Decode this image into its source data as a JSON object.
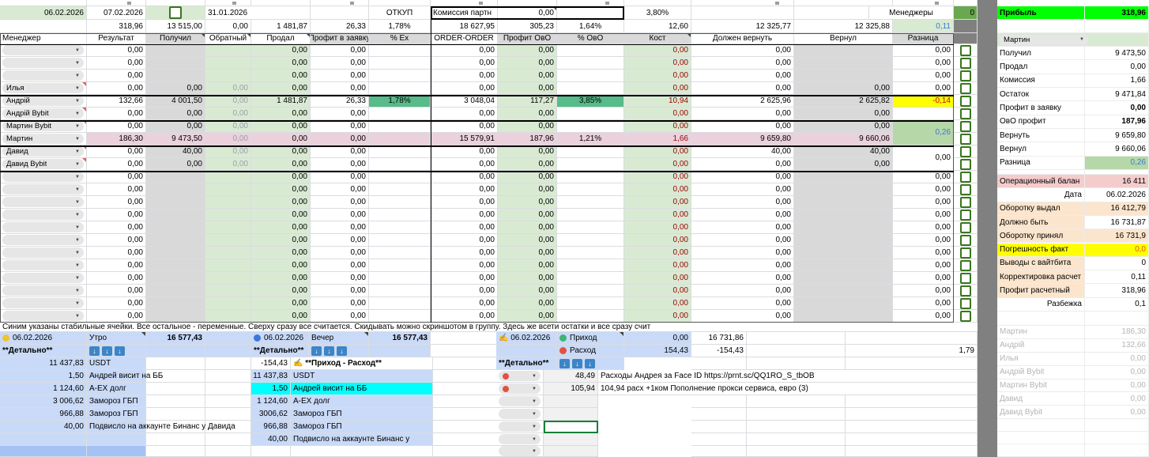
{
  "colors": {
    "profit_green": "#00ff00",
    "highlight_green": "#57bb8a",
    "light_green": "#d9ead3",
    "row_pink": "#ead1dc",
    "warning_yellow": "#ffff00",
    "section_blue": "#c9daf8",
    "cyan_highlight": "#00ffff",
    "managers_green": "#6aa84f"
  },
  "top": {
    "date_main": "06.02.2026",
    "date_next": "07.02.2026",
    "date_prev": "31.01.2026",
    "otkup": "ОТКУП",
    "commission_label": "Комиссия партн",
    "commission_value": "0,00",
    "partner_pct": "3,80%",
    "managers_label": "Менеджеры",
    "managers_count": "0",
    "profit_label": "Прибыль",
    "profit_value": "318,96",
    "totals": [
      "318,96",
      "13 515,00",
      "0,00",
      "1 481,87",
      "26,33",
      "1,78%",
      "18 627,95",
      "305,23",
      "1,64%",
      "12,60",
      "12 325,77",
      "12 325,88",
      "0,11"
    ]
  },
  "table": {
    "headers": [
      "Менеджер",
      "Результат",
      "Получил",
      "Обратный",
      "Продал",
      "Профит в заявку",
      "% Ex",
      "ORDER-ORDER",
      "Профит ОвО",
      "% ОвО",
      "Кост",
      "Должен вернуть",
      "Вернул",
      "Разница"
    ],
    "rows": [
      {
        "name": "",
        "cells": [
          "0,00",
          "",
          "",
          "0,00",
          "0,00",
          "",
          "0,00",
          "0,00",
          "",
          "0,00",
          "0,00",
          ""
        ],
        "rz": {
          "v": "0,00"
        }
      },
      {
        "name": "",
        "cells": [
          "0,00",
          "",
          "",
          "0,00",
          "0,00",
          "",
          "0,00",
          "0,00",
          "",
          "0,00",
          "0,00",
          ""
        ],
        "rz": {
          "v": "0,00"
        }
      },
      {
        "name": "",
        "cells": [
          "0,00",
          "",
          "",
          "0,00",
          "0,00",
          "",
          "0,00",
          "0,00",
          "",
          "0,00",
          "0,00",
          ""
        ],
        "rz": {
          "v": "0,00"
        }
      },
      {
        "name": "Илья",
        "comment": true,
        "cells": [
          "0,00",
          "0,00",
          "0,00",
          "0,00",
          "0,00",
          "",
          "0,00",
          "0,00",
          "",
          "0,00",
          "0,00",
          "0,00"
        ],
        "rz": {
          "v": "0,00"
        }
      },
      {
        "name": "Андрій",
        "cells": [
          "132,66",
          "4 001,50",
          "0,00",
          "1 481,87",
          "26,33",
          "1,78%",
          "3 048,04",
          "117,27",
          "3,85%",
          "10,94",
          "2 625,96",
          "2 625,82"
        ],
        "rz": {
          "v": "-0,14",
          "style": "yellow"
        }
      },
      {
        "name": "Андрій Bybit",
        "comment": true,
        "cells": [
          "0,00",
          "0,00",
          "0,00",
          "0,00",
          "0,00",
          "",
          "0,00",
          "0,00",
          "",
          "0,00",
          "0,00",
          "0,00"
        ],
        "rz": {
          "v": ""
        }
      },
      {
        "name": "Мартин Bybit",
        "comment": true,
        "cells": [
          "0,00",
          "0,00",
          "0,00",
          "0,00",
          "0,00",
          "",
          "0,00",
          "0,00",
          "",
          "0,00",
          "0,00",
          "0,00"
        ],
        "rz": {
          "v": "0,26",
          "span": 2,
          "style": "green"
        }
      },
      {
        "name": "Мартин",
        "pink": true,
        "cells": [
          "186,30",
          "9 473,50",
          "0,00",
          "0,00",
          "0,00",
          "",
          "15 579,91",
          "187,96",
          "1,21%",
          "1,66",
          "9 659,80",
          "9 660,06"
        ],
        "rz": {
          "skip": true
        }
      },
      {
        "name": "Давид",
        "comment": true,
        "cells": [
          "0,00",
          "40,00",
          "0,00",
          "0,00",
          "0,00",
          "",
          "0,00",
          "0,00",
          "",
          "0,00",
          "40,00",
          "40,00"
        ],
        "rz": {
          "v": "0,00",
          "span": 2
        }
      },
      {
        "name": "Давид Bybit",
        "comment": true,
        "cells": [
          "0,00",
          "0,00",
          "0,00",
          "0,00",
          "0,00",
          "",
          "0,00",
          "0,00",
          "",
          "0,00",
          "0,00",
          "0,00"
        ],
        "rz": {
          "skip": true
        }
      },
      {
        "name": "",
        "cells": [
          "0,00",
          "",
          "",
          "0,00",
          "0,00",
          "",
          "0,00",
          "0,00",
          "",
          "0,00",
          "0,00",
          ""
        ],
        "rz": {
          "v": "0,00"
        }
      },
      {
        "name": "",
        "cells": [
          "0,00",
          "",
          "",
          "0,00",
          "0,00",
          "",
          "0,00",
          "0,00",
          "",
          "0,00",
          "0,00",
          ""
        ],
        "rz": {
          "v": "0,00"
        }
      },
      {
        "name": "",
        "cells": [
          "0,00",
          "",
          "",
          "0,00",
          "0,00",
          "",
          "0,00",
          "0,00",
          "",
          "0,00",
          "0,00",
          ""
        ],
        "rz": {
          "v": "0,00"
        }
      },
      {
        "name": "",
        "cells": [
          "0,00",
          "",
          "",
          "0,00",
          "0,00",
          "",
          "0,00",
          "0,00",
          "",
          "0,00",
          "0,00",
          ""
        ],
        "rz": {
          "v": "0,00"
        }
      },
      {
        "name": "",
        "cells": [
          "0,00",
          "",
          "",
          "0,00",
          "0,00",
          "",
          "0,00",
          "0,00",
          "",
          "0,00",
          "0,00",
          ""
        ],
        "rz": {
          "v": "0,00"
        }
      },
      {
        "name": "",
        "cells": [
          "0,00",
          "",
          "",
          "0,00",
          "0,00",
          "",
          "0,00",
          "0,00",
          "",
          "0,00",
          "0,00",
          ""
        ],
        "rz": {
          "v": "0,00"
        }
      },
      {
        "name": "",
        "cells": [
          "0,00",
          "",
          "",
          "0,00",
          "0,00",
          "",
          "0,00",
          "0,00",
          "",
          "0,00",
          "0,00",
          ""
        ],
        "rz": {
          "v": "0,00"
        }
      },
      {
        "name": "",
        "cells": [
          "0,00",
          "",
          "",
          "0,00",
          "0,00",
          "",
          "0,00",
          "0,00",
          "",
          "0,00",
          "0,00",
          ""
        ],
        "rz": {
          "v": "0,00"
        }
      },
      {
        "name": "",
        "cells": [
          "0,00",
          "",
          "",
          "0,00",
          "0,00",
          "",
          "0,00",
          "0,00",
          "",
          "0,00",
          "0,00",
          ""
        ],
        "rz": {
          "v": "0,00"
        }
      },
      {
        "name": "",
        "cells": [
          "0,00",
          "",
          "",
          "0,00",
          "0,00",
          "",
          "0,00",
          "0,00",
          "",
          "0,00",
          "0,00",
          ""
        ],
        "rz": {
          "v": "0,00"
        }
      },
      {
        "name": "",
        "cells": [
          "0,00",
          "",
          "",
          "0,00",
          "0,00",
          "",
          "0,00",
          "0,00",
          "",
          "0,00",
          "0,00",
          ""
        ],
        "rz": {
          "v": "0,00"
        }
      },
      {
        "name": "",
        "cells": [
          "0,00",
          "",
          "",
          "0,00",
          "0,00",
          "",
          "0,00",
          "0,00",
          "",
          "0,00",
          "0,00",
          ""
        ],
        "rz": {
          "v": "0,00"
        }
      }
    ]
  },
  "note": "Синим указаны стабильные ячейки. Все остальное - переменные. Сверху сразу все считается. Скидывать можно скриншотом в группу. Здесь же всети остатки и все сразу счит",
  "bottom": {
    "left": {
      "date": "06.02.2026",
      "title": "Утро",
      "amount": "16 577,43",
      "detail_label": "**Детально**",
      "rows": [
        [
          "11 437,83",
          "USDT"
        ],
        [
          "1,50",
          "Андрей висит на ББ"
        ],
        [
          "1 124,60",
          "А-ЕХ долг"
        ],
        [
          "3 006,62",
          "Замороз ГБП"
        ],
        [
          "966,88",
          "Замороз ГБП"
        ],
        [
          "40,00",
          "Подвисло на аккаунте Бинанс у Давида"
        ]
      ]
    },
    "mid": {
      "date": "06.02.2026",
      "title": "Вечер",
      "amount": "16 577,43",
      "detail_label": "**Детально**",
      "flow_value": "-154,43",
      "flow_label": "**Приход - Расход**",
      "rows": [
        [
          "11 437,83",
          "USDT"
        ],
        [
          "1,50",
          "Андрей висит на ББ"
        ],
        [
          "1 124,60",
          "А-ЕХ долг"
        ],
        [
          "3006,62",
          "Замороз ГБП"
        ],
        [
          "966,88",
          "Замороз ГБП"
        ],
        [
          "40,00",
          "Подвисло на аккаунте Бинанс у"
        ]
      ]
    },
    "right": {
      "date": "06.02.2026",
      "prihod_label": "Приход",
      "prihod_value": "0,00",
      "prihod_total": "16 731,86",
      "rashod_label": "Расход",
      "rashod_value": "154,43",
      "rashod_total": "-154,43",
      "detail_label": "**Детально**",
      "extra": "1,79",
      "rows": [
        [
          "48,49",
          "Расходы Андрея за Face ID https://prnt.sc/QQ1RO_S_tbOB"
        ],
        [
          "105,94",
          "104,94 расх +1ком Пополнение прокси сервиса, евро (3)"
        ]
      ]
    }
  },
  "panel": {
    "selector": "Мартин",
    "stats": [
      [
        "Получил",
        "9 473,50"
      ],
      [
        "Продал",
        "0,00"
      ],
      [
        "Комиссия",
        "1,66"
      ],
      [
        "Остаток",
        "9 471,84"
      ],
      [
        "Профит в заявку",
        "0,00"
      ],
      [
        "ОвО профит",
        "187,96"
      ],
      [
        "Вернуть",
        "9 659,80"
      ],
      [
        "Вернул",
        "9 660,06"
      ],
      [
        "Разница",
        "0,26"
      ]
    ],
    "ops": [
      [
        "Операционный балан",
        "16 411"
      ],
      [
        "Дата",
        "06.02.2026"
      ],
      [
        "Оборотку выдал",
        "16 412,79"
      ],
      [
        "Должно быть",
        "16 731,87"
      ],
      [
        "Оборотку принял",
        "16 731,9"
      ],
      [
        "Погрешность факт",
        "0,0"
      ],
      [
        "Выводы с вайтбита",
        "0"
      ],
      [
        "Корректировка расчет",
        "0,11"
      ],
      [
        "Профит расчетный",
        "318,96"
      ],
      [
        "Разбежка",
        "0,1"
      ]
    ],
    "managers": [
      [
        "Мартин",
        "186,30"
      ],
      [
        "Андрій",
        "132,66"
      ],
      [
        "Илья",
        "0,00"
      ],
      [
        "Андрій Bybit",
        "0,00"
      ],
      [
        "Мартин Bybit",
        "0,00"
      ],
      [
        "Давид",
        "0,00"
      ],
      [
        "Давид Bybit",
        "0,00"
      ]
    ]
  }
}
